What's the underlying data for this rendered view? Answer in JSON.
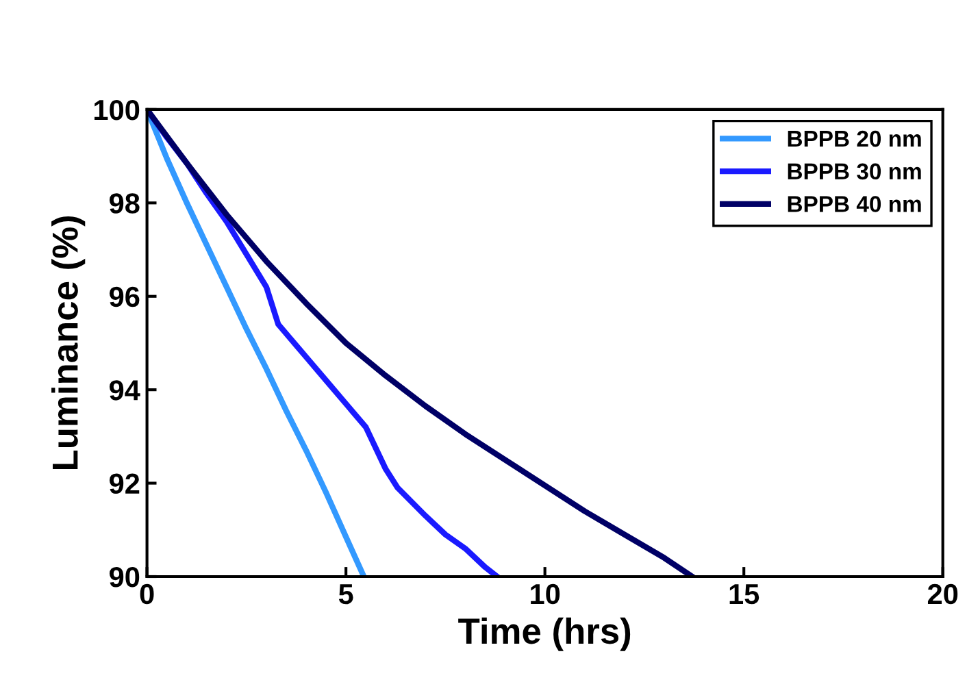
{
  "chart_data": {
    "type": "line",
    "xlabel": "Time (hrs)",
    "ylabel": "Luminance (%)",
    "xlim": [
      0,
      20
    ],
    "xticks": [
      0,
      5,
      10,
      15,
      20
    ],
    "ylim": [
      90,
      100
    ],
    "yticks": [
      90,
      92,
      94,
      96,
      98,
      100
    ],
    "grid": false,
    "legend": "top right",
    "marker": "none",
    "line_style": "solid",
    "series": [
      {
        "name": "BPPB 20 nm",
        "color": "#3399ff",
        "x": [
          0,
          0.5,
          1,
          1.5,
          2,
          2.5,
          3,
          3.5,
          4,
          4.5,
          5,
          5.45
        ],
        "values": [
          100,
          98.95,
          98.0,
          97.1,
          96.2,
          95.3,
          94.45,
          93.55,
          92.7,
          91.8,
          90.85,
          90
        ]
      },
      {
        "name": "BPPB 30 nm",
        "color": "#1a1aff",
        "x": [
          0,
          0.5,
          1,
          1.5,
          2,
          2.5,
          3,
          3.3,
          3.6,
          4,
          4.5,
          5,
          5.5,
          6,
          6.3,
          7,
          7.5,
          8,
          8.5,
          8.8
        ],
        "values": [
          100,
          99.4,
          98.85,
          98.2,
          97.6,
          96.9,
          96.2,
          95.4,
          95.1,
          94.7,
          94.2,
          93.7,
          93.2,
          92.3,
          91.9,
          91.3,
          90.9,
          90.6,
          90.2,
          90
        ]
      },
      {
        "name": "BPPB 40 nm",
        "color": "#000066",
        "x": [
          0,
          1,
          2,
          3,
          4,
          5,
          6,
          7,
          8,
          9,
          10,
          11,
          12,
          13,
          13.7
        ],
        "values": [
          100,
          98.85,
          97.75,
          96.75,
          95.85,
          95.0,
          94.3,
          93.65,
          93.05,
          92.5,
          91.95,
          91.4,
          90.9,
          90.4,
          90
        ]
      }
    ]
  }
}
